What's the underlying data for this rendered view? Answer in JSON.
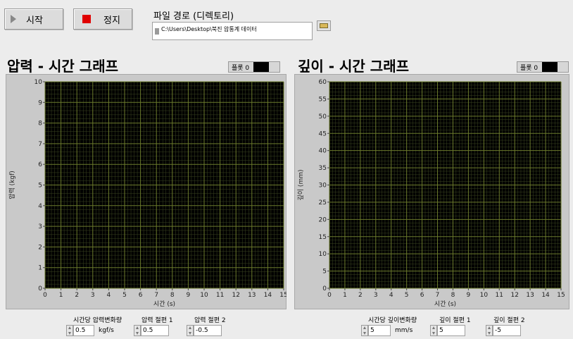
{
  "toolbar": {
    "start_label": "시작",
    "stop_label": "정지"
  },
  "path_section": {
    "label": "파일 경로 (디렉토리)",
    "value": "C:\\Users\\Desktop\\북진 압통계 데이터"
  },
  "pressure_graph": {
    "title": "압력 - 시간 그래프",
    "plot_legend": "플롯 0",
    "ylabel": "압력 (kgf)",
    "xlabel": "시간 (s)",
    "controls": {
      "rate_label": "시간당 압력변화량",
      "rate_value": "0.5",
      "rate_unit": "kgf/s",
      "intercept1_label": "압력 절편 1",
      "intercept1_value": "0.5",
      "intercept2_label": "압력 절편 2",
      "intercept2_value": "-0.5"
    }
  },
  "depth_graph": {
    "title": "깊이 - 시간 그래프",
    "plot_legend": "플롯 0",
    "ylabel": "깊이 (mm)",
    "xlabel": "시간 (s)",
    "controls": {
      "rate_label": "시간당 깊이변화량",
      "rate_value": "5",
      "rate_unit": "mm/s",
      "intercept1_label": "깊이 절편 1",
      "intercept1_value": "5",
      "intercept2_label": "깊이 절편 2",
      "intercept2_value": "-5"
    }
  },
  "colors": {
    "plot_bg": "#000000",
    "major_grid": "#6b7a2c",
    "minor_grid": "#3b4520",
    "stop_icon": "#e00000"
  },
  "chart_data": [
    {
      "type": "line",
      "title": "압력 - 시간 그래프",
      "xlabel": "시간 (s)",
      "ylabel": "압력 (kgf)",
      "xlim": [
        0,
        15
      ],
      "ylim": [
        0,
        10
      ],
      "xticks": [
        "0",
        "1",
        "2",
        "3",
        "4",
        "5",
        "6",
        "7",
        "8",
        "9",
        "10",
        "11",
        "12",
        "13",
        "14",
        "15"
      ],
      "yticks": [
        "0",
        "1",
        "2",
        "3",
        "4",
        "5",
        "6",
        "7",
        "8",
        "9",
        "10"
      ],
      "series": [],
      "grid": true,
      "legend": "top-right"
    },
    {
      "type": "line",
      "title": "깊이 - 시간 그래프",
      "xlabel": "시간 (s)",
      "ylabel": "깊이 (mm)",
      "xlim": [
        0,
        15
      ],
      "ylim": [
        0,
        60
      ],
      "xticks": [
        "0",
        "1",
        "2",
        "3",
        "4",
        "5",
        "6",
        "7",
        "8",
        "9",
        "10",
        "11",
        "12",
        "13",
        "14",
        "15"
      ],
      "yticks": [
        "0",
        "5",
        "10",
        "15",
        "20",
        "25",
        "30",
        "35",
        "40",
        "45",
        "50",
        "55",
        "60"
      ],
      "series": [],
      "grid": true,
      "legend": "top-right"
    }
  ]
}
